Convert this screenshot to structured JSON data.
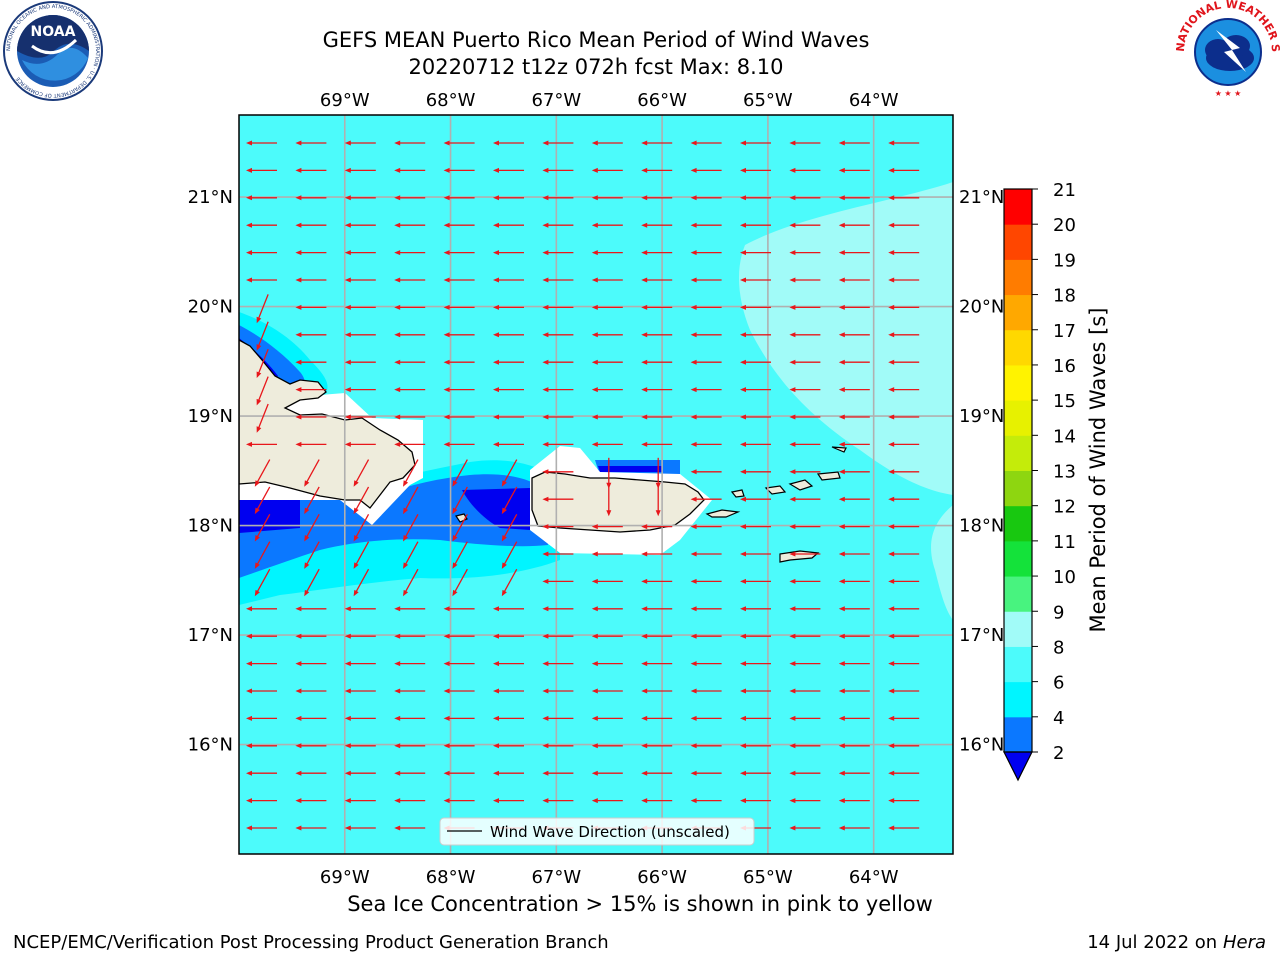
{
  "header": {
    "title_line1": "GEFS MEAN Puerto Rico Mean Period of Wind Waves",
    "title_line2": "20220712 t12z 072h fcst   Max: 8.10"
  },
  "logos": {
    "left": {
      "name": "noaa-logo",
      "text": "NOAA",
      "ring_text": "NATIONAL OCEANIC AND ATMOSPHERIC ADMINISTRATION · U.S. DEPARTMENT OF COMMERCE"
    },
    "right": {
      "name": "nws-logo",
      "ring_text": "NATIONAL WEATHER SERVICE"
    }
  },
  "map": {
    "lon_range": [
      -70.0,
      -63.25
    ],
    "lat_range": [
      15.0,
      21.75
    ],
    "lon_ticks": [
      "69°W",
      "68°W",
      "67°W",
      "66°W",
      "65°W",
      "64°W"
    ],
    "lat_ticks": [
      "16°N",
      "17°N",
      "18°N",
      "19°N",
      "20°N",
      "21°N"
    ],
    "grid": true,
    "legend": {
      "label": "Wind Wave Direction (unscaled)",
      "position": "bottom-center"
    },
    "arrow_color": "#e8171b",
    "land_color": "#eeecdc",
    "ocean_base_color": "#4cfbfb"
  },
  "colorbar": {
    "label": "Mean Period of Wind Waves [s]",
    "ticks": [
      "2",
      "4",
      "6",
      "8",
      "9",
      "10",
      "11",
      "12",
      "13",
      "14",
      "15",
      "16",
      "17",
      "18",
      "19",
      "20",
      "21"
    ],
    "under_color": "#0000f0",
    "colors": [
      "#0b78ff",
      "#00f5ff",
      "#4cfbfb",
      "#a1fbf8",
      "#48f37f",
      "#14e23a",
      "#18c810",
      "#8ed610",
      "#c4ec0a",
      "#e7f100",
      "#fff300",
      "#ffd800",
      "#ffa800",
      "#ff7c00",
      "#ff4600",
      "#ff0000"
    ]
  },
  "subtitle": "Sea Ice Concentration > 15% is shown in pink to yellow",
  "footer": {
    "left": "NCEP/EMC/Verification Post Processing Product Generation Branch",
    "right_prefix": "14 Jul 2022 on ",
    "right_host": "Hera"
  }
}
